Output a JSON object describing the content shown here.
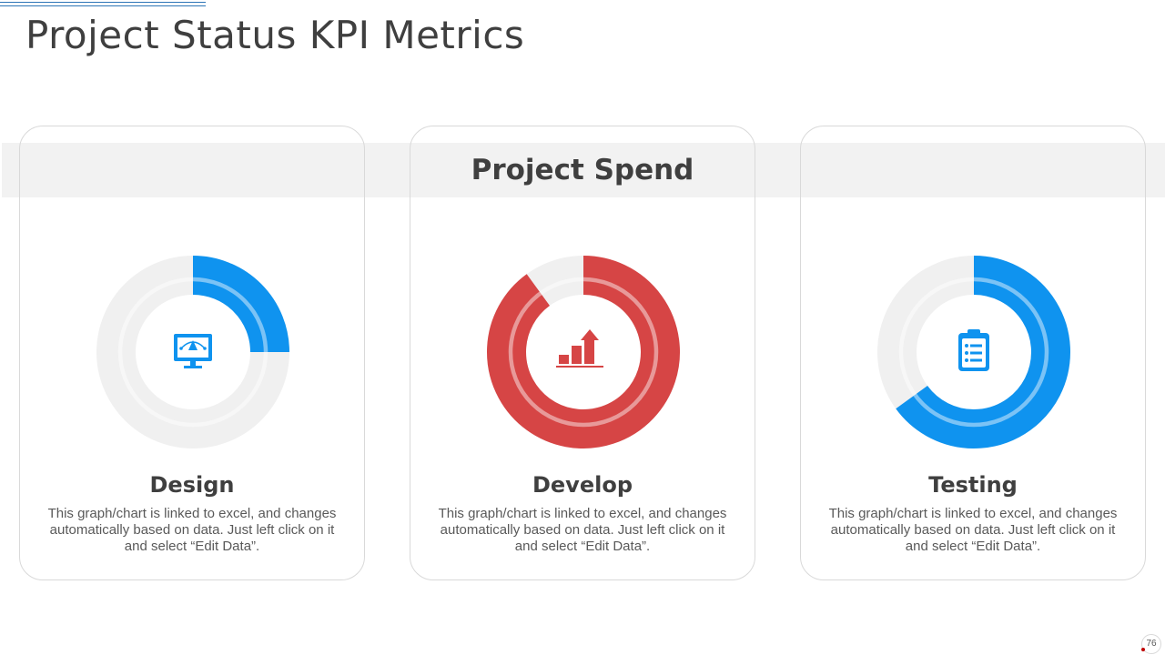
{
  "title": "Project Status KPI Metrics",
  "band_title": "Project Spend",
  "page_number": "76",
  "colors": {
    "blue": "#0f93ef",
    "red": "#d64545",
    "track": "#f0f0f0",
    "text": "#3f3f3f"
  },
  "chart_data": [
    {
      "type": "pie",
      "title": "Design",
      "values": [
        25
      ],
      "max": 100,
      "color": "#0f93ef",
      "icon": "monitor-design-icon"
    },
    {
      "type": "pie",
      "title": "Develop",
      "values": [
        90
      ],
      "max": 100,
      "color": "#d64545",
      "icon": "growth-bar-chart-icon"
    },
    {
      "type": "pie",
      "title": "Testing",
      "values": [
        65
      ],
      "max": 100,
      "color": "#0f93ef",
      "icon": "clipboard-checklist-icon"
    }
  ],
  "cards": [
    {
      "label": "Design",
      "description": "This graph/chart is linked to excel, and changes automatically based on data. Just left click on it and select “Edit Data”."
    },
    {
      "label": "Develop",
      "description": "This graph/chart is linked to excel, and changes automatically based on data. Just left click on it and select “Edit Data”."
    },
    {
      "label": "Testing",
      "description": "This graph/chart is linked to excel, and changes automatically based on data. Just left click on it and select “Edit Data”."
    }
  ]
}
